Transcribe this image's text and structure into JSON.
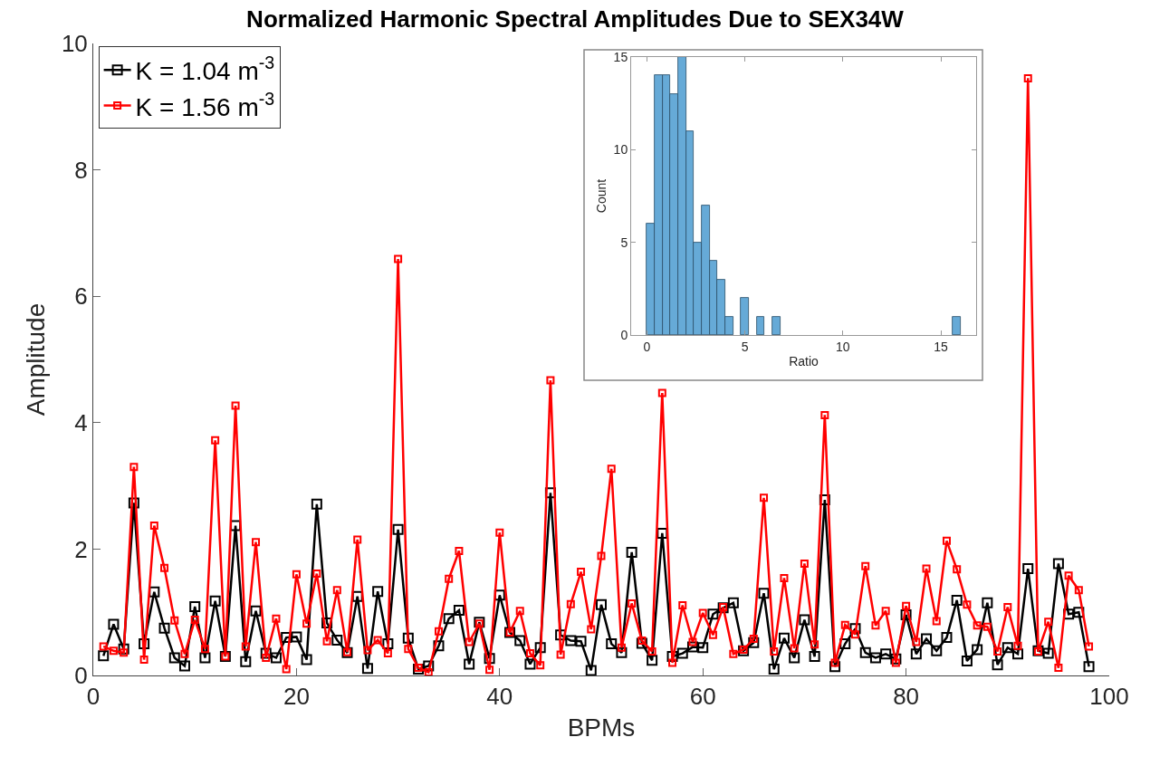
{
  "chart_data": [
    {
      "type": "line",
      "title": "Normalized Harmonic Spectral Amplitudes Due to SEX34W",
      "xlabel": "BPMs",
      "ylabel": "Amplitude",
      "x": [
        1,
        2,
        3,
        4,
        5,
        6,
        7,
        8,
        9,
        10,
        11,
        12,
        13,
        14,
        15,
        16,
        17,
        18,
        19,
        20,
        21,
        22,
        23,
        24,
        25,
        26,
        27,
        28,
        29,
        30,
        31,
        32,
        33,
        34,
        35,
        36,
        37,
        38,
        39,
        40,
        41,
        42,
        43,
        44,
        45,
        46,
        47,
        48,
        49,
        50,
        51,
        52,
        53,
        54,
        55,
        56,
        57,
        58,
        59,
        60,
        61,
        62,
        63,
        64,
        65,
        66,
        67,
        68,
        69,
        70,
        71,
        72,
        73,
        74,
        75,
        76,
        77,
        78,
        79,
        80,
        81,
        82,
        83,
        84,
        85,
        86,
        87,
        88,
        89,
        90,
        91,
        92,
        93,
        94,
        95,
        96,
        97,
        98
      ],
      "series": [
        {
          "name": "K = 1.04 m$^{-3}$",
          "color": "#000000",
          "values": [
            0.31,
            0.81,
            0.42,
            2.73,
            0.5,
            1.32,
            0.75,
            0.28,
            0.15,
            1.09,
            0.28,
            1.18,
            0.3,
            2.37,
            0.22,
            1.02,
            0.35,
            0.28,
            0.6,
            0.61,
            0.25,
            2.71,
            0.83,
            0.56,
            0.36,
            1.25,
            0.11,
            1.33,
            0.5,
            2.31,
            0.59,
            0.1,
            0.15,
            0.47,
            0.9,
            1.03,
            0.18,
            0.84,
            0.27,
            1.27,
            0.68,
            0.55,
            0.18,
            0.44,
            2.89,
            0.64,
            0.55,
            0.54,
            0.08,
            1.12,
            0.5,
            0.36,
            1.95,
            0.51,
            0.24,
            2.25,
            0.3,
            0.35,
            0.45,
            0.44,
            0.97,
            1.07,
            1.15,
            0.39,
            0.52,
            1.3,
            0.1,
            0.59,
            0.28,
            0.88,
            0.3,
            2.78,
            0.14,
            0.5,
            0.74,
            0.36,
            0.28,
            0.34,
            0.26,
            0.96,
            0.34,
            0.58,
            0.39,
            0.6,
            1.19,
            0.23,
            0.41,
            1.15,
            0.17,
            0.44,
            0.34,
            1.69,
            0.39,
            0.35,
            1.77,
            0.97,
            1.0,
            0.14
          ]
        },
        {
          "name": "K = 1.56 m$^{-3}$",
          "color": "#ff0000",
          "values": [
            0.46,
            0.39,
            0.36,
            3.3,
            0.25,
            2.37,
            1.7,
            0.87,
            0.34,
            0.88,
            0.42,
            3.72,
            0.3,
            4.27,
            0.46,
            2.11,
            0.28,
            0.9,
            0.1,
            1.6,
            0.82,
            1.61,
            0.54,
            1.35,
            0.37,
            2.15,
            0.4,
            0.56,
            0.35,
            6.59,
            0.42,
            0.12,
            0.05,
            0.7,
            1.53,
            1.97,
            0.53,
            0.82,
            0.09,
            2.26,
            0.68,
            1.02,
            0.35,
            0.16,
            4.67,
            0.33,
            1.13,
            1.64,
            0.73,
            1.89,
            3.27,
            0.44,
            1.14,
            0.55,
            0.38,
            4.47,
            0.2,
            1.11,
            0.53,
            0.99,
            0.64,
            1.08,
            0.34,
            0.41,
            0.58,
            2.81,
            0.38,
            1.54,
            0.43,
            1.77,
            0.49,
            4.12,
            0.2,
            0.8,
            0.65,
            1.73,
            0.79,
            1.02,
            0.2,
            1.1,
            0.53,
            1.69,
            0.86,
            2.13,
            1.68,
            1.12,
            0.79,
            0.77,
            0.38,
            1.08,
            0.47,
            9.45,
            0.38,
            0.85,
            0.12,
            1.58,
            1.35,
            0.46
          ]
        }
      ],
      "marker": "square",
      "legend": "top left",
      "xlim": [
        0,
        100
      ],
      "ylim": [
        0,
        10
      ],
      "xticks": [
        0,
        20,
        40,
        60,
        80,
        100
      ],
      "yticks": [
        0,
        2,
        4,
        6,
        8,
        10
      ]
    },
    {
      "type": "histogram",
      "xlabel": "Ratio",
      "ylabel": "Count",
      "color": "#66aad7",
      "bins": [
        0,
        0.4,
        0.8,
        1.2,
        1.6,
        2.0,
        2.4,
        2.8,
        3.2,
        3.6,
        4.0,
        4.4,
        4.8,
        5.2,
        5.6,
        6.0,
        6.4,
        6.8,
        7.2,
        7.6,
        8.0,
        8.4,
        8.8,
        9.2,
        9.6,
        10.0,
        10.4,
        10.8,
        11.2,
        11.6,
        12.0,
        12.4,
        12.8,
        13.2,
        13.6,
        14.0,
        14.4,
        14.8,
        15.2,
        15.6,
        16.0
      ],
      "values": [
        6,
        14,
        14,
        13,
        15,
        11,
        5,
        7,
        4,
        3,
        1,
        0,
        2,
        0,
        1,
        0,
        1,
        0,
        0,
        0,
        0,
        0,
        0,
        0,
        0,
        0,
        0,
        0,
        0,
        0,
        0,
        0,
        0,
        0,
        0,
        0,
        0,
        0,
        0,
        1
      ],
      "xlim": [
        -0.8,
        16.8
      ],
      "ylim": [
        0,
        15
      ],
      "xticks": [
        0,
        5,
        10,
        15
      ],
      "yticks": [
        0,
        5,
        10,
        15
      ]
    }
  ]
}
